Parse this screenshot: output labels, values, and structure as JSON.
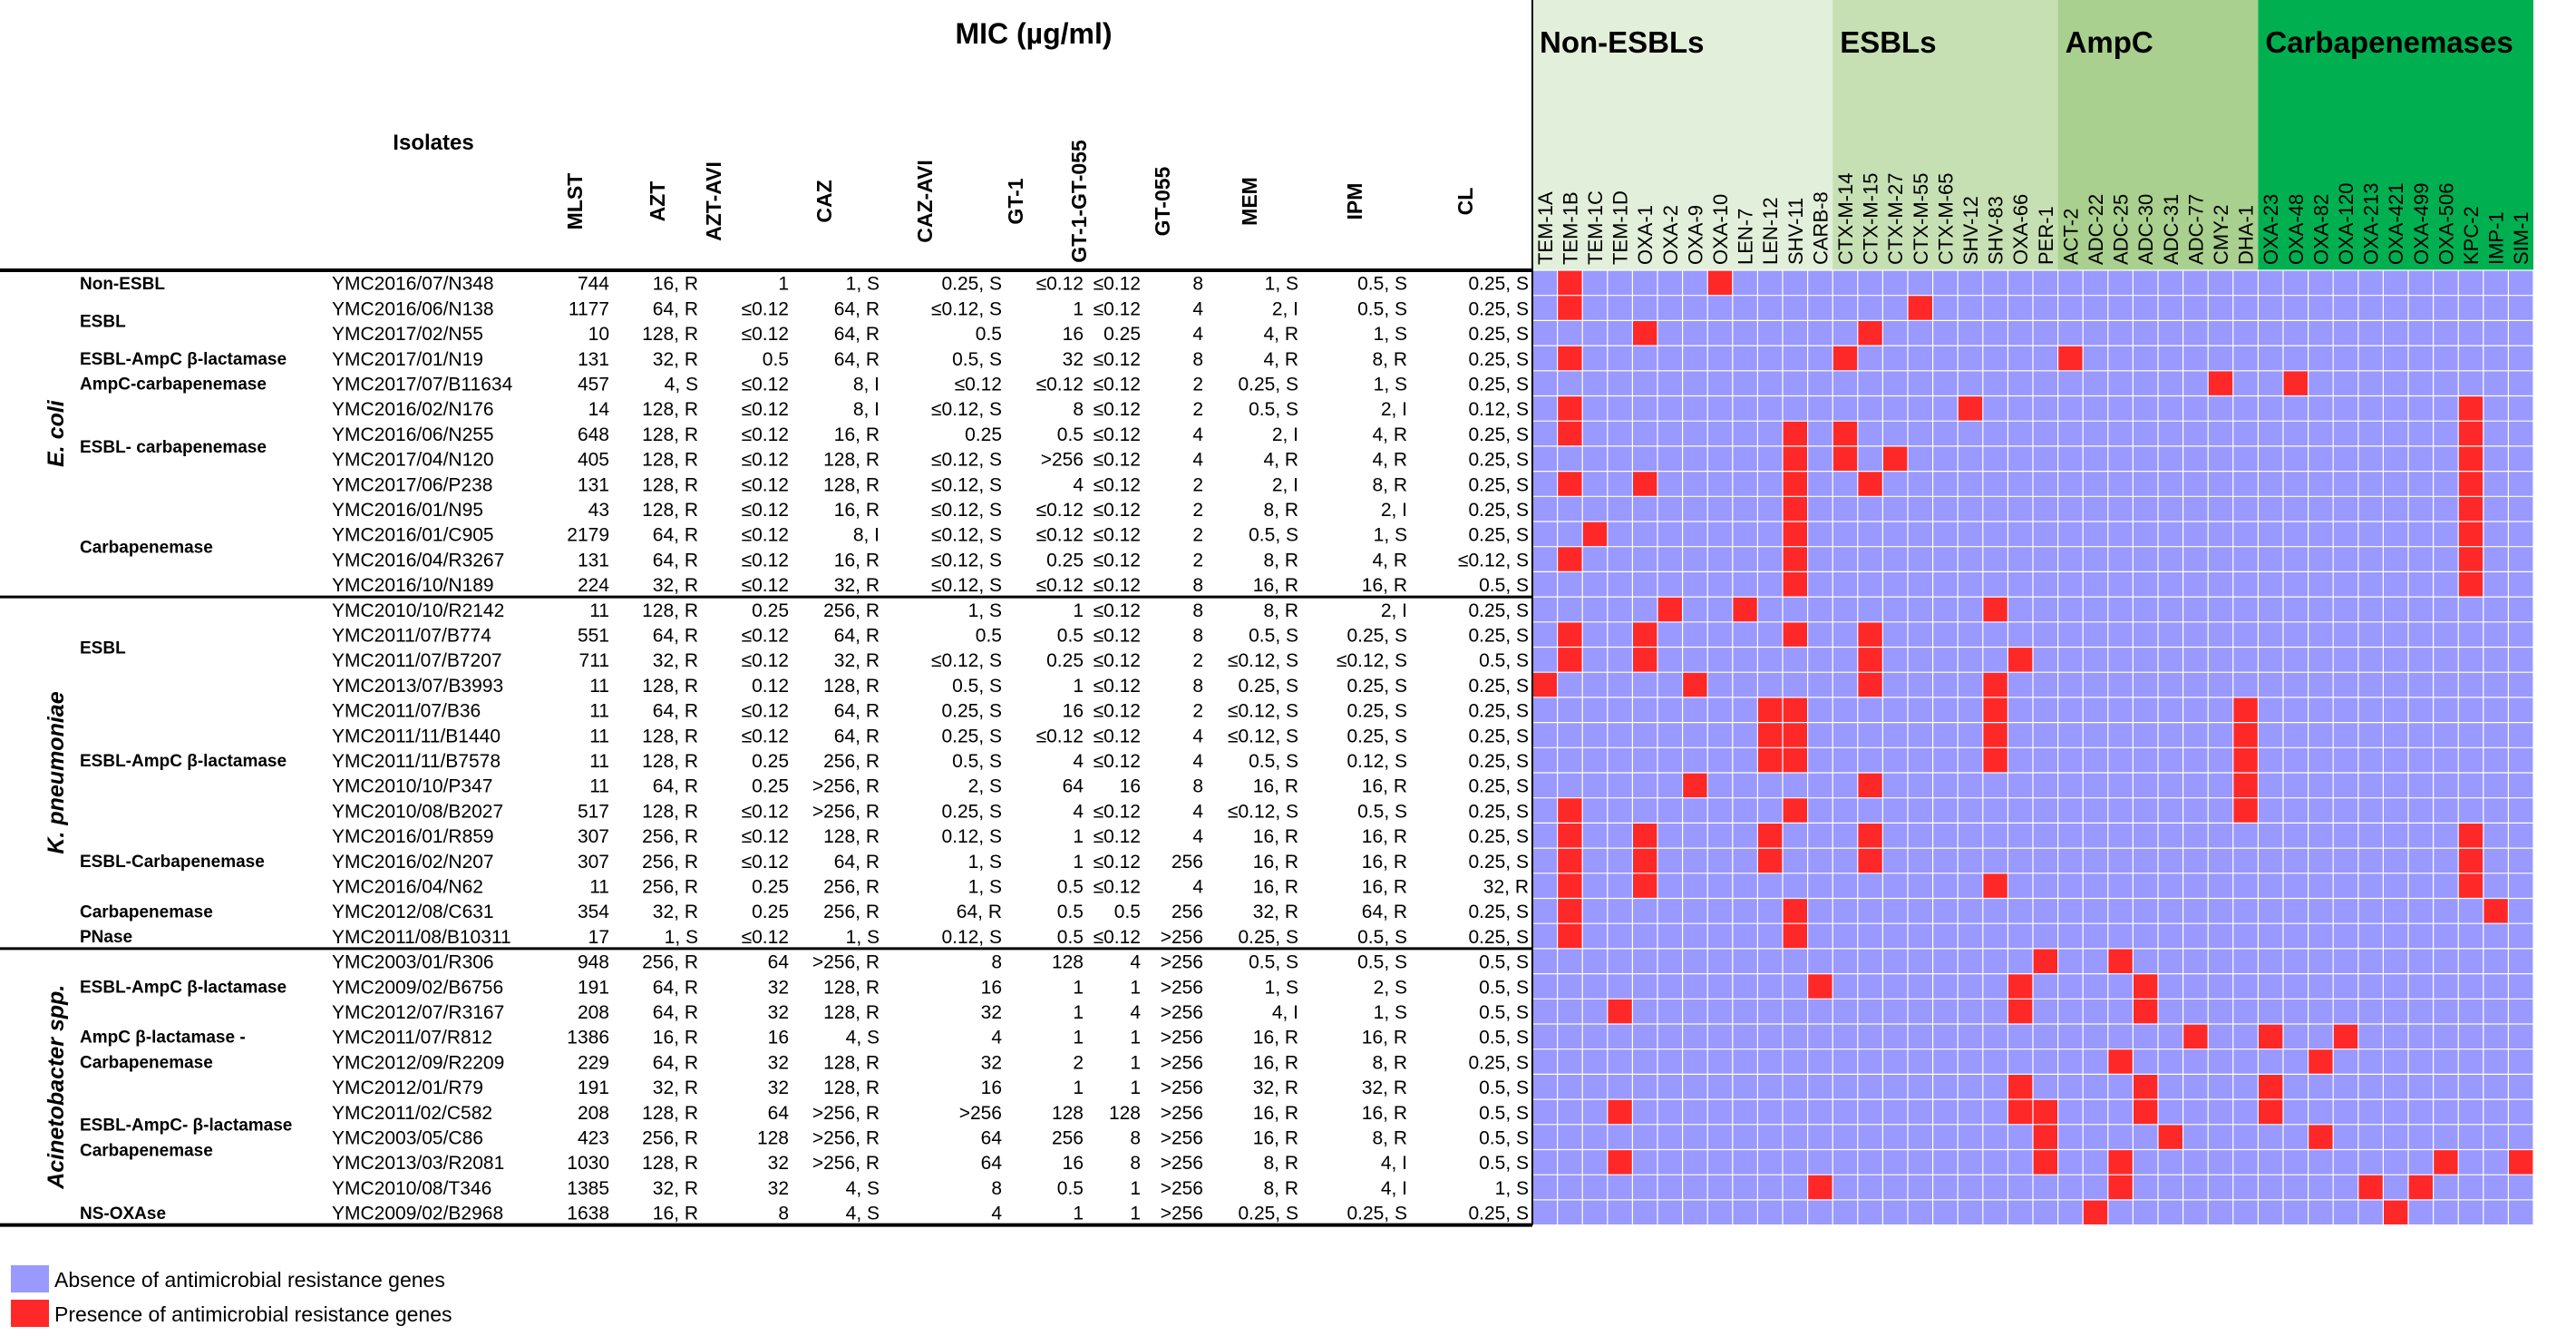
{
  "chart_data": {
    "type": "heatmap",
    "title": "MIC (µg/ml)",
    "isolates_header": "Isolates",
    "mic_columns": [
      "MLST",
      "AZT",
      "AZT-AVI",
      "CAZ",
      "CAZ-AVI",
      "GT-1",
      "GT-1-GT-055",
      "GT-055",
      "MEM",
      "IPM",
      "CL"
    ],
    "gene_groups": [
      {
        "name": "Non-ESBLs",
        "color": "#e2efda",
        "genes": [
          "TEM-1A",
          "TEM-1B",
          "TEM-1C",
          "TEM-1D",
          "OXA-1",
          "OXA-2",
          "OXA-9",
          "OXA-10",
          "LEN-7",
          "LEN-12",
          "SHV-11",
          "CARB-8"
        ]
      },
      {
        "name": "ESBLs",
        "color": "#c6e0b4",
        "genes": [
          "CTX-M-14",
          "CTX-M-15",
          "CTX-M-27",
          "CTX-M-55",
          "CTX-M-65",
          "SHV-12",
          "SHV-83",
          "OXA-66",
          "PER-1"
        ]
      },
      {
        "name": "AmpC",
        "color": "#a9d08e",
        "genes": [
          "ACT-2",
          "ADC-22",
          "ADC-25",
          "ADC-30",
          "ADC-31",
          "ADC-77",
          "CMY-2",
          "DHA-1"
        ]
      },
      {
        "name": "Carbapenemases",
        "color": "#00b050",
        "genes": [
          "OXA-23",
          "OXA-48",
          "OXA-82",
          "OXA-120",
          "OXA-213",
          "OXA-421",
          "OXA-499",
          "OXA-506",
          "KPC-2",
          "IMP-1",
          "SIM-1"
        ]
      }
    ],
    "species": [
      {
        "name": "E. coli",
        "row_start": 0,
        "row_end": 12
      },
      {
        "name": "K. pneumoniae",
        "row_start": 13,
        "row_end": 26
      },
      {
        "name": "Acinetobacter spp.",
        "row_start": 27,
        "row_end": 37
      }
    ],
    "categories": [
      {
        "lines": [
          "Non-ESBL"
        ],
        "row_start": 0,
        "row_end": 0
      },
      {
        "lines": [
          "ESBL"
        ],
        "row_start": 1,
        "row_end": 2
      },
      {
        "lines": [
          "ESBL-AmpC β-lactamase"
        ],
        "row_start": 3,
        "row_end": 3
      },
      {
        "lines": [
          "AmpC-carbapenemase"
        ],
        "row_start": 4,
        "row_end": 4
      },
      {
        "lines": [
          "ESBL- carbapenemase"
        ],
        "row_start": 5,
        "row_end": 8
      },
      {
        "lines": [
          "Carbapenemase"
        ],
        "row_start": 9,
        "row_end": 12
      },
      {
        "lines": [
          "ESBL"
        ],
        "row_start": 13,
        "row_end": 16
      },
      {
        "lines": [
          "ESBL-AmpC β-lactamase"
        ],
        "row_start": 17,
        "row_end": 21
      },
      {
        "lines": [
          "ESBL-Carbapenemase"
        ],
        "row_start": 22,
        "row_end": 24
      },
      {
        "lines": [
          "Carbapenemase"
        ],
        "row_start": 25,
        "row_end": 25
      },
      {
        "lines": [
          "PNase"
        ],
        "row_start": 26,
        "row_end": 26
      },
      {
        "lines": [
          "ESBL-AmpC β-lactamase"
        ],
        "row_start": 27,
        "row_end": 29
      },
      {
        "lines": [
          "AmpC β-lactamase -",
          "Carbapenemase"
        ],
        "row_start": 30,
        "row_end": 31
      },
      {
        "lines": [
          "ESBL-AmpC- β-lactamase",
          "Carbapenemase"
        ],
        "row_start": 32,
        "row_end": 36
      },
      {
        "lines": [
          "NS-OXAse"
        ],
        "row_start": 37,
        "row_end": 37
      }
    ],
    "rows": [
      {
        "isolate": "YMC2016/07/N348",
        "mic": [
          "744",
          "16, R",
          "1",
          "1, S",
          "0.25, S",
          "≤0.12",
          "≤0.12",
          "8",
          "1, S",
          "0.5, S",
          "0.25, S"
        ],
        "genes": [
          "TEM-1B",
          "OXA-10"
        ]
      },
      {
        "isolate": "YMC2016/06/N138",
        "mic": [
          "1177",
          "64, R",
          "≤0.12",
          "64, R",
          "≤0.12, S",
          "1",
          "≤0.12",
          "4",
          "2, I",
          "0.5, S",
          "0.25, S"
        ],
        "genes": [
          "TEM-1B",
          "CTX-M-55"
        ]
      },
      {
        "isolate": "YMC2017/02/N55",
        "mic": [
          "10",
          "128, R",
          "≤0.12",
          "64, R",
          "0.5",
          "16",
          "0.25",
          "4",
          "4, R",
          "1, S",
          "0.25, S"
        ],
        "genes": [
          "OXA-1",
          "CTX-M-15"
        ]
      },
      {
        "isolate": "YMC2017/01/N19",
        "mic": [
          "131",
          "32, R",
          "0.5",
          "64, R",
          "0.5, S",
          "32",
          "≤0.12",
          "8",
          "4, R",
          "8, R",
          "0.25, S"
        ],
        "genes": [
          "TEM-1B",
          "CTX-M-14",
          "ACT-2"
        ]
      },
      {
        "isolate": "YMC2017/07/B11634",
        "mic": [
          "457",
          "4, S",
          "≤0.12",
          "8, I",
          "≤0.12",
          "≤0.12",
          "≤0.12",
          "2",
          "0.25, S",
          "1, S",
          "0.25, S"
        ],
        "genes": [
          "CMY-2",
          "OXA-48"
        ]
      },
      {
        "isolate": "YMC2016/02/N176",
        "mic": [
          "14",
          "128, R",
          "≤0.12",
          "8, I",
          "≤0.12, S",
          "8",
          "≤0.12",
          "2",
          "0.5, S",
          "2, I",
          "0.12, S"
        ],
        "genes": [
          "TEM-1B",
          "SHV-12",
          "KPC-2"
        ]
      },
      {
        "isolate": "YMC2016/06/N255",
        "mic": [
          "648",
          "128, R",
          "≤0.12",
          "16, R",
          "0.25",
          "0.5",
          "≤0.12",
          "4",
          "2, I",
          "4, R",
          "0.25, S"
        ],
        "genes": [
          "TEM-1B",
          "SHV-11",
          "CTX-M-14",
          "KPC-2"
        ]
      },
      {
        "isolate": "YMC2017/04/N120",
        "mic": [
          "405",
          "128, R",
          "≤0.12",
          "128, R",
          "≤0.12, S",
          ">256",
          "≤0.12",
          "4",
          "4, R",
          "4, R",
          "0.25, S"
        ],
        "genes": [
          "SHV-11",
          "CTX-M-14",
          "CTX-M-27",
          "KPC-2"
        ]
      },
      {
        "isolate": "YMC2017/06/P238",
        "mic": [
          "131",
          "128, R",
          "≤0.12",
          "128, R",
          "≤0.12, S",
          "4",
          "≤0.12",
          "2",
          "2, I",
          "8, R",
          "0.25, S"
        ],
        "genes": [
          "TEM-1B",
          "OXA-1",
          "SHV-11",
          "CTX-M-15",
          "KPC-2"
        ]
      },
      {
        "isolate": "YMC2016/01/N95",
        "mic": [
          "43",
          "128, R",
          "≤0.12",
          "16, R",
          "≤0.12, S",
          "≤0.12",
          "≤0.12",
          "2",
          "8, R",
          "2, I",
          "0.25, S"
        ],
        "genes": [
          "SHV-11",
          "KPC-2"
        ]
      },
      {
        "isolate": "YMC2016/01/C905",
        "mic": [
          "2179",
          "64, R",
          "≤0.12",
          "8, I",
          "≤0.12, S",
          "≤0.12",
          "≤0.12",
          "2",
          "0.5, S",
          "1, S",
          "0.25, S"
        ],
        "genes": [
          "TEM-1C",
          "SHV-11",
          "KPC-2"
        ]
      },
      {
        "isolate": "YMC2016/04/R3267",
        "mic": [
          "131",
          "64, R",
          "≤0.12",
          "16, R",
          "≤0.12, S",
          "0.25",
          "≤0.12",
          "2",
          "8, R",
          "4, R",
          "≤0.12, S"
        ],
        "genes": [
          "TEM-1B",
          "SHV-11",
          "KPC-2"
        ]
      },
      {
        "isolate": "YMC2016/10/N189",
        "mic": [
          "224",
          "32, R",
          "≤0.12",
          "32, R",
          "≤0.12, S",
          "≤0.12",
          "≤0.12",
          "8",
          "16, R",
          "16, R",
          "0.5, S"
        ],
        "genes": [
          "SHV-11",
          "KPC-2"
        ]
      },
      {
        "isolate": "YMC2010/10/R2142",
        "mic": [
          "11",
          "128, R",
          "0.25",
          "256, R",
          "1, S",
          "1",
          "≤0.12",
          "8",
          "8, R",
          "2, I",
          "0.25, S"
        ],
        "genes": [
          "OXA-2",
          "LEN-7",
          "SHV-83"
        ]
      },
      {
        "isolate": "YMC2011/07/B774",
        "mic": [
          "551",
          "64, R",
          "≤0.12",
          "64, R",
          "0.5",
          "0.5",
          "≤0.12",
          "8",
          "0.5, S",
          "0.25, S",
          "0.25, S"
        ],
        "genes": [
          "TEM-1B",
          "OXA-1",
          "SHV-11",
          "CTX-M-15"
        ]
      },
      {
        "isolate": "YMC2011/07/B7207",
        "mic": [
          "711",
          "32, R",
          "≤0.12",
          "32, R",
          "≤0.12, S",
          "0.25",
          "≤0.12",
          "2",
          "≤0.12, S",
          "≤0.12, S",
          "0.5, S"
        ],
        "genes": [
          "TEM-1B",
          "OXA-1",
          "CTX-M-15",
          "OXA-66"
        ]
      },
      {
        "isolate": "YMC2013/07/B3993",
        "mic": [
          "11",
          "128, R",
          "0.12",
          "128, R",
          "0.5, S",
          "1",
          "≤0.12",
          "8",
          "0.25, S",
          "0.25, S",
          "0.25, S"
        ],
        "genes": [
          "TEM-1A",
          "OXA-9",
          "CTX-M-15",
          "SHV-83"
        ]
      },
      {
        "isolate": "YMC2011/07/B36",
        "mic": [
          "11",
          "64, R",
          "≤0.12",
          "64, R",
          "0.25, S",
          "16",
          "≤0.12",
          "2",
          "≤0.12, S",
          "0.25, S",
          "0.25, S"
        ],
        "genes": [
          "LEN-12",
          "SHV-11",
          "SHV-83",
          "DHA-1"
        ]
      },
      {
        "isolate": "YMC2011/11/B1440",
        "mic": [
          "11",
          "128, R",
          "≤0.12",
          "64, R",
          "0.25, S",
          "≤0.12",
          "≤0.12",
          "4",
          "≤0.12, S",
          "0.25, S",
          "0.25, S"
        ],
        "genes": [
          "LEN-12",
          "SHV-11",
          "SHV-83",
          "DHA-1"
        ]
      },
      {
        "isolate": "YMC2011/11/B7578",
        "mic": [
          "11",
          "128, R",
          "0.25",
          "256, R",
          "0.5, S",
          "4",
          "≤0.12",
          "4",
          "0.5, S",
          "0.12, S",
          "0.25, S"
        ],
        "genes": [
          "LEN-12",
          "SHV-11",
          "SHV-83",
          "DHA-1"
        ]
      },
      {
        "isolate": "YMC2010/10/P347",
        "mic": [
          "11",
          "64, R",
          "0.25",
          ">256, R",
          "2, S",
          "64",
          "16",
          "8",
          "16, R",
          "16, R",
          "0.25, S"
        ],
        "genes": [
          "OXA-9",
          "CTX-M-15",
          "DHA-1"
        ]
      },
      {
        "isolate": "YMC2010/08/B2027",
        "mic": [
          "517",
          "128, R",
          "≤0.12",
          ">256, R",
          "0.25, S",
          "4",
          "≤0.12",
          "4",
          "≤0.12, S",
          "0.5, S",
          "0.25, S"
        ],
        "genes": [
          "TEM-1B",
          "SHV-11",
          "DHA-1"
        ]
      },
      {
        "isolate": "YMC2016/01/R859",
        "mic": [
          "307",
          "256, R",
          "≤0.12",
          "128, R",
          "0.12, S",
          "1",
          "≤0.12",
          "4",
          "16, R",
          "16, R",
          "0.25, S"
        ],
        "genes": [
          "TEM-1B",
          "OXA-1",
          "LEN-12",
          "CTX-M-15",
          "KPC-2"
        ]
      },
      {
        "isolate": "YMC2016/02/N207",
        "mic": [
          "307",
          "256, R",
          "≤0.12",
          "64, R",
          "1, S",
          "1",
          "≤0.12",
          "256",
          "16, R",
          "16, R",
          "0.25, S"
        ],
        "genes": [
          "TEM-1B",
          "OXA-1",
          "LEN-12",
          "CTX-M-15",
          "KPC-2"
        ]
      },
      {
        "isolate": "YMC2016/04/N62",
        "mic": [
          "11",
          "256, R",
          "0.25",
          "256, R",
          "1, S",
          "0.5",
          "≤0.12",
          "4",
          "16, R",
          "16, R",
          "32, R"
        ],
        "genes": [
          "TEM-1B",
          "OXA-1",
          "SHV-83",
          "KPC-2"
        ]
      },
      {
        "isolate": "YMC2012/08/C631",
        "mic": [
          "354",
          "32, R",
          "0.25",
          "256, R",
          "64, R",
          "0.5",
          "0.5",
          "256",
          "32, R",
          "64, R",
          "0.25, S"
        ],
        "genes": [
          "TEM-1B",
          "SHV-11",
          "IMP-1"
        ]
      },
      {
        "isolate": "YMC2011/08/B10311",
        "mic": [
          "17",
          "1, S",
          "≤0.12",
          "1, S",
          "0.12, S",
          "0.5",
          "≤0.12",
          ">256",
          "0.25, S",
          "0.5, S",
          "0.25, S"
        ],
        "genes": [
          "TEM-1B",
          "SHV-11"
        ]
      },
      {
        "isolate": "YMC2003/01/R306",
        "mic": [
          "948",
          "256, R",
          "64",
          ">256, R",
          "8",
          "128",
          "4",
          ">256",
          "0.5, S",
          "0.5, S",
          "0.5, S"
        ],
        "genes": [
          "PER-1",
          "ADC-25"
        ]
      },
      {
        "isolate": "YMC2009/02/B6756",
        "mic": [
          "191",
          "64, R",
          "32",
          "128, R",
          "16",
          "1",
          "1",
          ">256",
          "1, S",
          "2, S",
          "0.5, S"
        ],
        "genes": [
          "CARB-8",
          "OXA-66",
          "ADC-30"
        ]
      },
      {
        "isolate": "YMC2012/07/R3167",
        "mic": [
          "208",
          "64, R",
          "32",
          "128, R",
          "32",
          "1",
          "4",
          ">256",
          "4, I",
          "1, S",
          "0.5, S"
        ],
        "genes": [
          "TEM-1D",
          "OXA-66",
          "ADC-30"
        ]
      },
      {
        "isolate": "YMC2011/07/R812",
        "mic": [
          "1386",
          "16, R",
          "16",
          "4, S",
          "4",
          "1",
          "1",
          ">256",
          "16, R",
          "16, R",
          "0.5, S"
        ],
        "genes": [
          "ADC-77",
          "OXA-23",
          "OXA-120"
        ]
      },
      {
        "isolate": "YMC2012/09/R2209",
        "mic": [
          "229",
          "64, R",
          "32",
          "128, R",
          "32",
          "2",
          "1",
          ">256",
          "16, R",
          "8, R",
          "0.25, S"
        ],
        "genes": [
          "ADC-25",
          "OXA-82"
        ]
      },
      {
        "isolate": "YMC2012/01/R79",
        "mic": [
          "191",
          "32, R",
          "32",
          "128, R",
          "16",
          "1",
          "1",
          ">256",
          "32, R",
          "32, R",
          "0.5, S"
        ],
        "genes": [
          "OXA-66",
          "ADC-30",
          "OXA-23"
        ]
      },
      {
        "isolate": "YMC2011/02/C582",
        "mic": [
          "208",
          "128, R",
          "64",
          ">256, R",
          ">256",
          "128",
          "128",
          ">256",
          "16, R",
          "16, R",
          "0.5, S"
        ],
        "genes": [
          "TEM-1D",
          "OXA-66",
          "PER-1",
          "ADC-30",
          "OXA-23"
        ]
      },
      {
        "isolate": "YMC2003/05/C86",
        "mic": [
          "423",
          "256, R",
          "128",
          ">256, R",
          "64",
          "256",
          "8",
          ">256",
          "16, R",
          "8, R",
          "0.5, S"
        ],
        "genes": [
          "PER-1",
          "ADC-31",
          "OXA-82"
        ]
      },
      {
        "isolate": "YMC2013/03/R2081",
        "mic": [
          "1030",
          "128, R",
          "32",
          ">256, R",
          "64",
          "16",
          "8",
          ">256",
          "8, R",
          "4, I",
          "0.5, S"
        ],
        "genes": [
          "TEM-1D",
          "PER-1",
          "ADC-25",
          "OXA-506",
          "SIM-1"
        ]
      },
      {
        "isolate": "YMC2010/08/T346",
        "mic": [
          "1385",
          "32, R",
          "32",
          "4, S",
          "8",
          "0.5",
          "1",
          ">256",
          "8, R",
          "4, I",
          "1, S"
        ],
        "genes": [
          "CARB-8",
          "ADC-25",
          "OXA-213",
          "OXA-499"
        ]
      },
      {
        "isolate": "YMC2009/02/B2968",
        "mic": [
          "1638",
          "16, R",
          "8",
          "4, S",
          "4",
          "1",
          "1",
          ">256",
          "0.25, S",
          "0.25, S",
          "0.25, S"
        ],
        "genes": [
          "ADC-22",
          "OXA-421"
        ]
      }
    ],
    "legend": [
      {
        "label": "Absence of antimicrobial resistance genes",
        "color": "#9999ff"
      },
      {
        "label": "Presence of antimicrobial resistance genes",
        "color": "#ff2828"
      }
    ],
    "absent_color": "#9999ff",
    "present_color": "#ff2828"
  }
}
